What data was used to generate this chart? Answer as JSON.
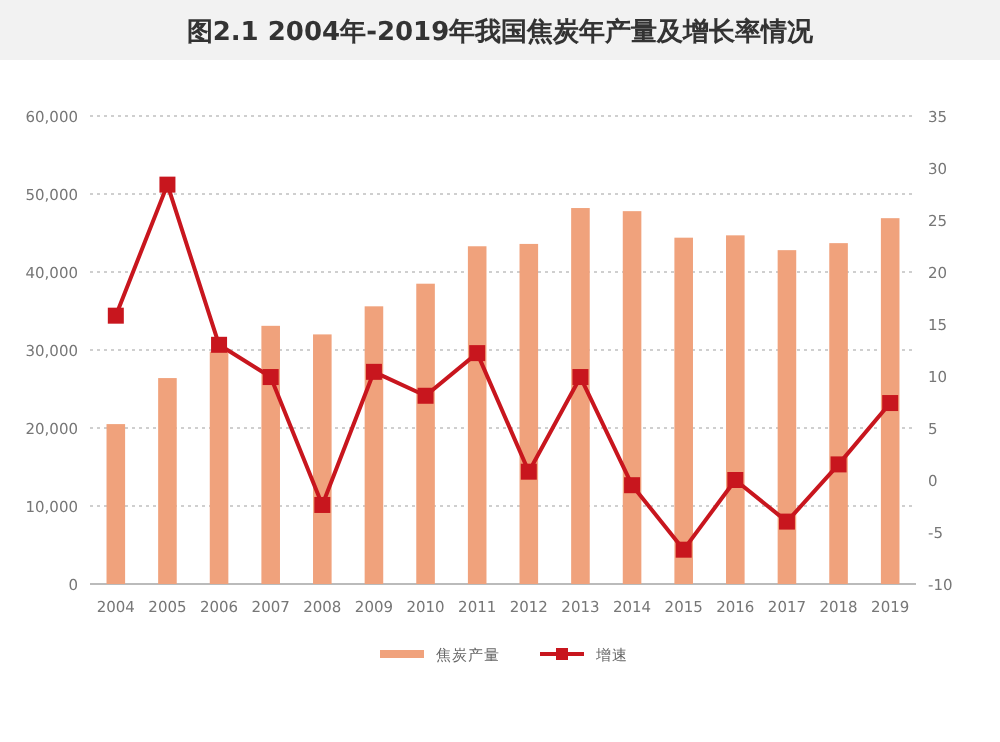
{
  "chart_data": {
    "type": "bar",
    "title": "图2.1 2004年-2019年我国焦炭年产量及增长率情况",
    "categories": [
      "2004",
      "2005",
      "2006",
      "2007",
      "2008",
      "2009",
      "2010",
      "2011",
      "2012",
      "2013",
      "2014",
      "2015",
      "2016",
      "2017",
      "2018",
      "2019"
    ],
    "series": [
      {
        "name": "焦炭产量",
        "color": "#f0a27c",
        "values": [
          20500,
          26400,
          29800,
          33100,
          32000,
          35600,
          38500,
          43300,
          43600,
          48200,
          47800,
          44400,
          44700,
          42800,
          43700,
          46900
        ]
      },
      {
        "name": "增速",
        "type": "line",
        "axis": "y2",
        "color": "#c8161e",
        "values": [
          15.8,
          28.4,
          13,
          9.9,
          -2.4,
          10.4,
          8.1,
          12.2,
          0.8,
          9.9,
          -0.5,
          -6.7,
          0,
          -4,
          1.5,
          7.4
        ]
      }
    ],
    "ylim": [
      0,
      60000
    ],
    "yticks": [
      0,
      {
        "value": 10000,
        "label": "10,000"
      },
      {
        "value": 20000,
        "label": "20,000"
      },
      {
        "value": 30000,
        "label": "30,000"
      },
      {
        "value": 40000,
        "label": "40,000"
      },
      {
        "value": 50000,
        "label": "50,000"
      },
      {
        "value": 60000,
        "label": "60,000"
      }
    ],
    "y2lim": [
      -10,
      35
    ],
    "y2ticks": [
      -10,
      -5,
      0,
      5,
      10,
      15,
      20,
      25,
      30,
      35
    ],
    "grid": "y",
    "legend": "bottom",
    "marker": "square",
    "line_style": "solid"
  }
}
